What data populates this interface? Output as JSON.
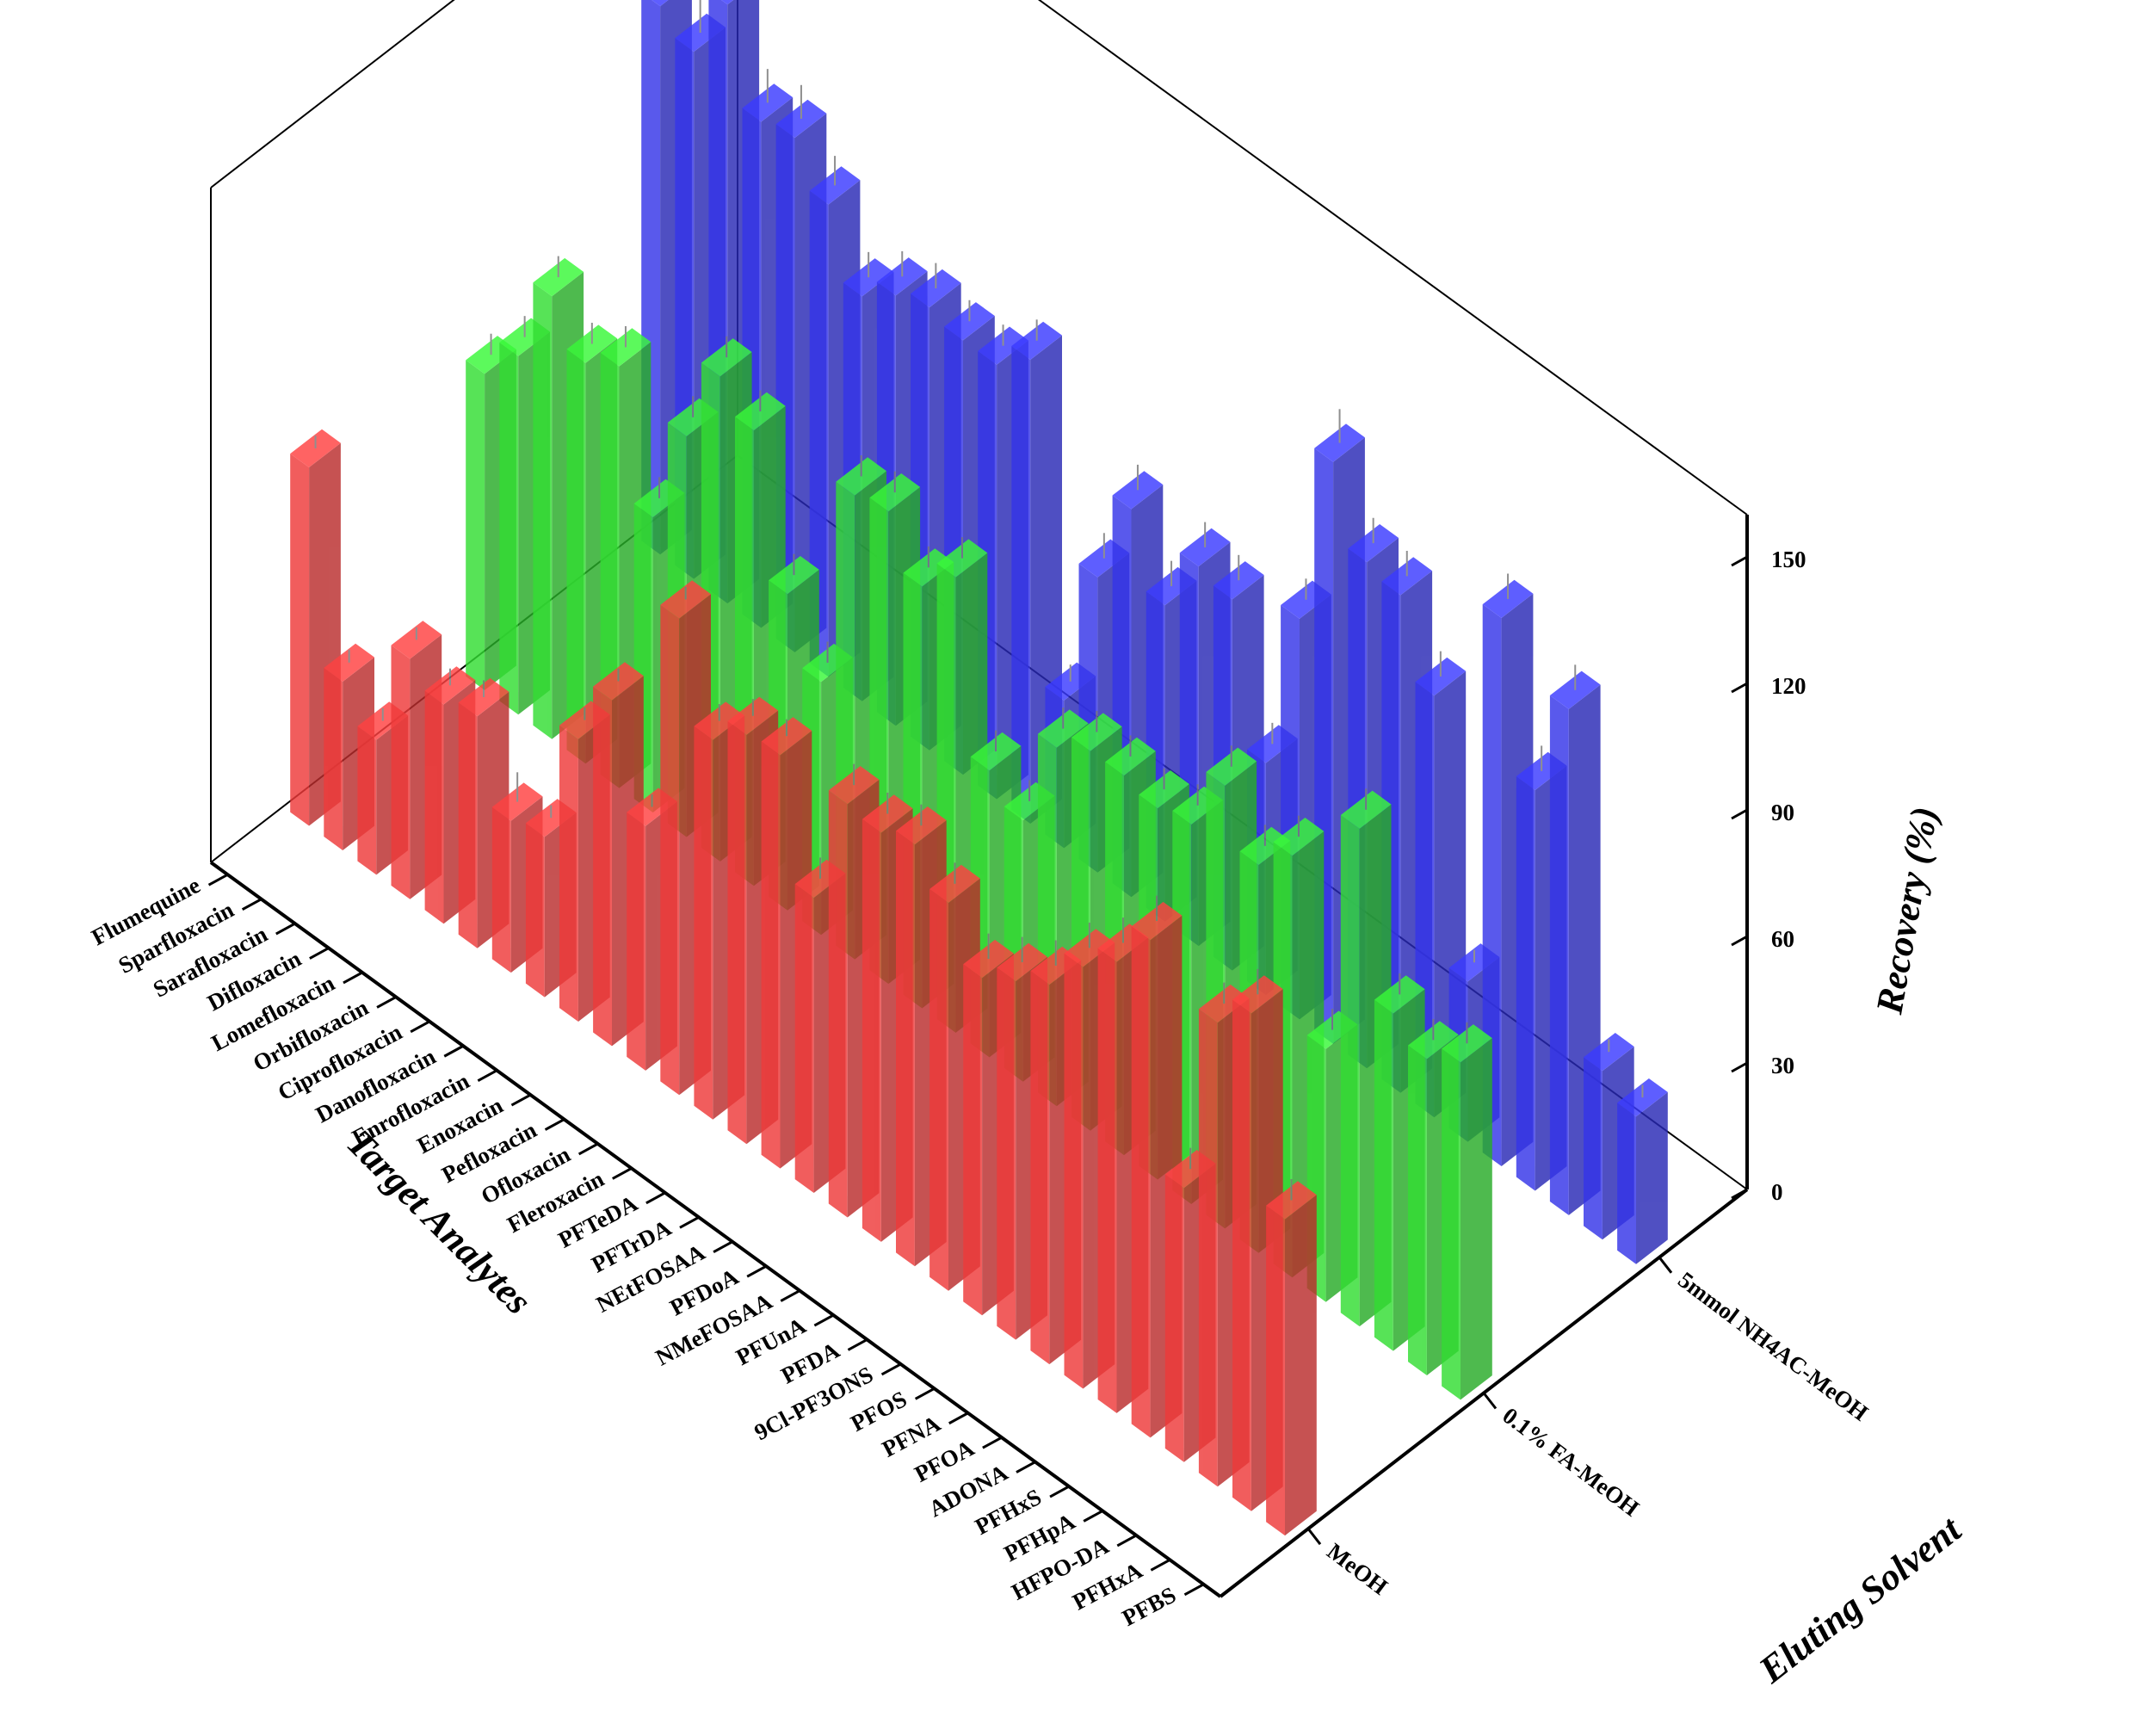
{
  "chart_data": {
    "type": "bar3d",
    "title": "",
    "xlabel": "Target Analytes",
    "ylabel": "Eluting Solvent",
    "zlabel": "Recovery (%)",
    "zlim": [
      0,
      160
    ],
    "z_ticks": [
      0,
      30,
      60,
      90,
      120,
      150
    ],
    "categories": [
      "Flumequine",
      "Sparfloxacin",
      "Sarafloxacin",
      "Difloxacin",
      "Lomefloxacin",
      "Orbifloxacin",
      "Ciprofloxacin",
      "Danofloxacin",
      "Enrofloxacin",
      "Enoxacin",
      "Pefloxacin",
      "Ofloxacin",
      "Fleroxacin",
      "PFTeDA",
      "PFTrDA",
      "NEtFOSAA",
      "PFDoA",
      "NMeFOSAA",
      "PFUnA",
      "PFDA",
      "9Cl-PF3ONS",
      "PFOS",
      "PFNA",
      "PFOA",
      "ADONA",
      "PFHxS",
      "PFHpA",
      "HFPO-DA",
      "PFHxA",
      "PFBS"
    ],
    "series": [
      {
        "name": "MeOH",
        "color": "#ee3a3a",
        "values": [
          85,
          40,
          32,
          57,
          52,
          55,
          36,
          38,
          67,
          82,
          58,
          113,
          90,
          97,
          98,
          70,
          98,
          97,
          100,
          92,
          80,
          85,
          90,
          100,
          107,
          118,
          65,
          110,
          118,
          75
        ],
        "errors": [
          3,
          3,
          3,
          3,
          4,
          4,
          7,
          3,
          3,
          3,
          3,
          3,
          4,
          4,
          4,
          5,
          5,
          5,
          5,
          5,
          6,
          6,
          6,
          6,
          6,
          6,
          5,
          5,
          6,
          5
        ]
      },
      {
        "name": "0.1% FA-MeOH",
        "color": "#33dd33",
        "values": [
          75,
          85,
          105,
          95,
          100,
          70,
          95,
          115,
          108,
          75,
          60,
          110,
          112,
          100,
          108,
          68,
          62,
          85,
          90,
          90,
          88,
          90,
          105,
          92,
          100,
          60,
          118,
          80,
          75,
          80
        ],
        "errors": [
          5,
          5,
          5,
          5,
          5,
          5,
          5,
          5,
          5,
          5,
          5,
          5,
          5,
          5,
          5,
          5,
          5,
          5,
          5,
          5,
          5,
          5,
          5,
          5,
          5,
          5,
          5,
          5,
          5,
          5
        ]
      },
      {
        "name": "5mmol NH4AC-MeOH",
        "color": "#3535e8",
        "values": [
          130,
          125,
          142,
          120,
          122,
          112,
          96,
          102,
          105,
          103,
          103,
          110,
          35,
          70,
          92,
          75,
          90,
          88,
          55,
          95,
          138,
          120,
          118,
          100,
          38,
          130,
          95,
          120,
          40,
          35
        ],
        "errors": [
          8,
          8,
          8,
          8,
          8,
          7,
          6,
          6,
          6,
          5,
          5,
          5,
          4,
          6,
          6,
          6,
          6,
          6,
          5,
          5,
          8,
          6,
          6,
          6,
          3,
          6,
          6,
          6,
          3,
          3
        ]
      }
    ],
    "legend": "none"
  },
  "z_tick_labels": [
    "0",
    "30",
    "60",
    "90",
    "120",
    "150"
  ],
  "solvent_labels": [
    "MeOH",
    "0.1% FA-MeOH",
    "5mmol NH4AC-MeOH"
  ],
  "axis_titles": {
    "x": "Target Analytes",
    "y": "Eluting Solvent",
    "z": "Recovery (%)"
  }
}
